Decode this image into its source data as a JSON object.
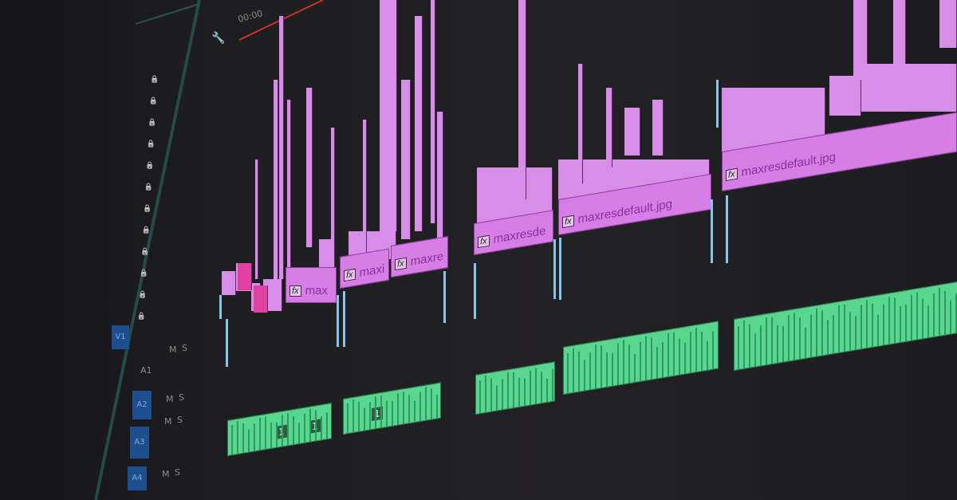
{
  "timeline": {
    "timecode": "00:00",
    "video_clips": [
      {
        "label": "max",
        "icon": "fx-icon"
      },
      {
        "label": "maxi",
        "icon": "fx-icon"
      },
      {
        "label": "maxre",
        "icon": "fx-icon"
      },
      {
        "label": "maxresde",
        "icon": "fx-icon"
      },
      {
        "label": "maxresdefault.jpg",
        "icon": "fx-icon"
      },
      {
        "label": "maxresdefault.jpg",
        "icon": "fx-icon"
      }
    ],
    "fx_badge": "fx",
    "audio_clip_markers": [
      "1",
      "1",
      "1"
    ]
  },
  "tracks": {
    "v1": "V1",
    "a1": "A1",
    "a2": "A2",
    "a3": "A3",
    "a4": "A4",
    "mute": "M",
    "solo": "S"
  },
  "colors": {
    "video_clip": "#d67ee6",
    "audio_clip": "#58d68f",
    "playhead": "#d0302a",
    "track_selected": "#1d4f8f",
    "background": "#1b1a1c"
  }
}
